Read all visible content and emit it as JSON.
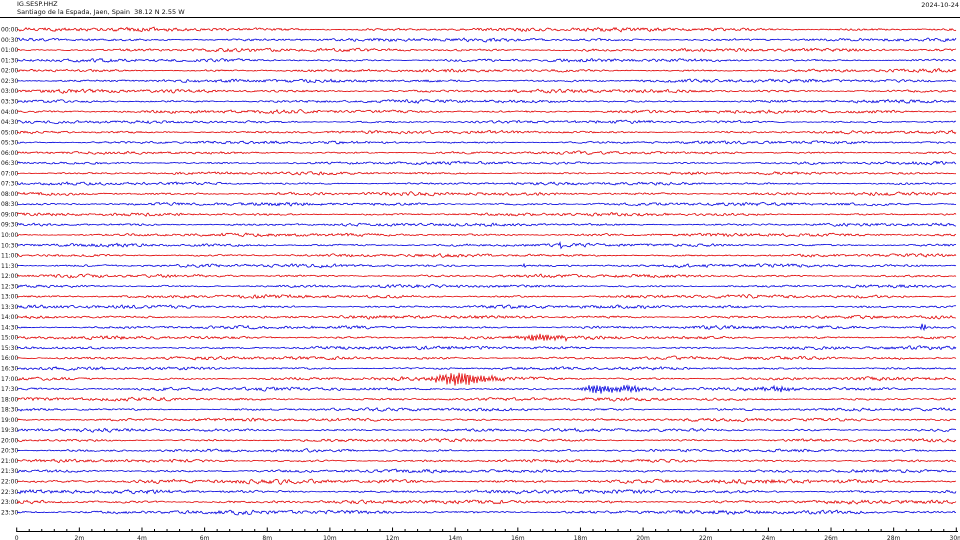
{
  "header": {
    "station": "IG.SESP.HHZ",
    "location": "Santiago de la Espada, Jaen, Spain  38.12 N 2.55 W",
    "date": "2024-10-24"
  },
  "chart_data": {
    "type": "line",
    "subtype": "helicorder-dayplot",
    "title": "IG.SESP.HHZ",
    "subtitle": "Santiago de la Espada, Jaen, Spain  38.12 N 2.55 W",
    "date": "2024-10-24",
    "minutes_per_row": 30,
    "x_axis": {
      "tick_labels": [
        "0",
        "2m",
        "4m",
        "6m",
        "8m",
        "10m",
        "12m",
        "14m",
        "16m",
        "18m",
        "20m",
        "22m",
        "24m",
        "26m",
        "28m",
        "30m"
      ],
      "major_tick_minutes": 2,
      "minor_ticks_per_major": 5,
      "range_minutes": [
        0,
        30
      ]
    },
    "legend_position": "none",
    "grid": false,
    "trace_colors": {
      "hour_row": "#e00000",
      "half_hour_row": "#0000dd"
    },
    "axis_color": "#000000",
    "rows": [
      {
        "label": "00:00",
        "color": "#e00000",
        "amp": 1.1
      },
      {
        "label": "00:30",
        "color": "#0000dd",
        "amp": 1.0
      },
      {
        "label": "01:00",
        "color": "#e00000",
        "amp": 1.0
      },
      {
        "label": "01:30",
        "color": "#0000dd",
        "amp": 0.95
      },
      {
        "label": "02:00",
        "color": "#e00000",
        "amp": 0.9
      },
      {
        "label": "02:30",
        "color": "#0000dd",
        "amp": 1.0
      },
      {
        "label": "03:00",
        "color": "#e00000",
        "amp": 1.0
      },
      {
        "label": "03:30",
        "color": "#0000dd",
        "amp": 0.95
      },
      {
        "label": "04:00",
        "color": "#e00000",
        "amp": 1.0
      },
      {
        "label": "04:30",
        "color": "#0000dd",
        "amp": 0.9
      },
      {
        "label": "05:00",
        "color": "#e00000",
        "amp": 0.9
      },
      {
        "label": "05:30",
        "color": "#0000dd",
        "amp": 0.85
      },
      {
        "label": "06:00",
        "color": "#e00000",
        "amp": 0.8
      },
      {
        "label": "06:30",
        "color": "#0000dd",
        "amp": 0.85
      },
      {
        "label": "07:00",
        "color": "#e00000",
        "amp": 0.8
      },
      {
        "label": "07:30",
        "color": "#0000dd",
        "amp": 0.85
      },
      {
        "label": "08:00",
        "color": "#e00000",
        "amp": 1.0
      },
      {
        "label": "08:30",
        "color": "#0000dd",
        "amp": 0.95
      },
      {
        "label": "09:00",
        "color": "#e00000",
        "amp": 0.9
      },
      {
        "label": "09:30",
        "color": "#0000dd",
        "amp": 0.9
      },
      {
        "label": "10:00",
        "color": "#e00000",
        "amp": 0.95
      },
      {
        "label": "10:30",
        "color": "#0000dd",
        "amp": 0.9
      },
      {
        "label": "11:00",
        "color": "#e00000",
        "amp": 0.9
      },
      {
        "label": "11:30",
        "color": "#0000dd",
        "amp": 0.95
      },
      {
        "label": "12:00",
        "color": "#e00000",
        "amp": 0.9
      },
      {
        "label": "12:30",
        "color": "#0000dd",
        "amp": 0.9
      },
      {
        "label": "13:00",
        "color": "#e00000",
        "amp": 1.0
      },
      {
        "label": "13:30",
        "color": "#0000dd",
        "amp": 1.0
      },
      {
        "label": "14:00",
        "color": "#e00000",
        "amp": 1.0
      },
      {
        "label": "14:30",
        "color": "#0000dd",
        "amp": 0.95
      },
      {
        "label": "15:00",
        "color": "#e00000",
        "amp": 1.0
      },
      {
        "label": "15:30",
        "color": "#0000dd",
        "amp": 0.95
      },
      {
        "label": "16:00",
        "color": "#e00000",
        "amp": 0.95
      },
      {
        "label": "16:30",
        "color": "#0000dd",
        "amp": 0.9
      },
      {
        "label": "17:00",
        "color": "#e00000",
        "amp": 1.0
      },
      {
        "label": "17:30",
        "color": "#0000dd",
        "amp": 1.0
      },
      {
        "label": "18:00",
        "color": "#e00000",
        "amp": 0.95
      },
      {
        "label": "18:30",
        "color": "#0000dd",
        "amp": 0.9
      },
      {
        "label": "19:00",
        "color": "#e00000",
        "amp": 0.9
      },
      {
        "label": "19:30",
        "color": "#0000dd",
        "amp": 0.95
      },
      {
        "label": "20:00",
        "color": "#e00000",
        "amp": 0.9
      },
      {
        "label": "20:30",
        "color": "#0000dd",
        "amp": 0.85
      },
      {
        "label": "21:00",
        "color": "#e00000",
        "amp": 0.9
      },
      {
        "label": "21:30",
        "color": "#0000dd",
        "amp": 0.95
      },
      {
        "label": "22:00",
        "color": "#e00000",
        "amp": 1.25
      },
      {
        "label": "22:30",
        "color": "#0000dd",
        "amp": 1.1
      },
      {
        "label": "23:00",
        "color": "#e00000",
        "amp": 1.1
      },
      {
        "label": "23:30",
        "color": "#0000dd",
        "amp": 1.15
      }
    ],
    "events": [
      {
        "row": "10:30",
        "minute": 17.35,
        "amplitude": 3.2,
        "duration_min": 0.12,
        "shape": "spike"
      },
      {
        "row": "11:30",
        "minute": 16.2,
        "amplitude": 2.2,
        "duration_min": 0.1,
        "shape": "spike"
      },
      {
        "row": "14:30",
        "minute": 28.95,
        "amplitude": 6.5,
        "duration_min": 0.12,
        "shape": "spike"
      },
      {
        "row": "15:00",
        "minute": 16.85,
        "amplitude": 3.5,
        "duration_min": 1.2,
        "shape": "burst"
      },
      {
        "row": "17:00",
        "minute": 14.1,
        "amplitude": 7.5,
        "duration_min": 1.0,
        "shape": "burst"
      },
      {
        "row": "17:00",
        "minute": 14.9,
        "amplitude": 2.2,
        "duration_min": 1.4,
        "shape": "burst"
      },
      {
        "row": "17:30",
        "minute": 18.56,
        "amplitude": 4.8,
        "duration_min": 0.8,
        "shape": "burst"
      },
      {
        "row": "17:30",
        "minute": 19.5,
        "amplitude": 4.2,
        "duration_min": 0.8,
        "shape": "burst"
      },
      {
        "row": "17:30",
        "minute": 24.3,
        "amplitude": 3.0,
        "duration_min": 0.6,
        "shape": "burst"
      }
    ]
  }
}
